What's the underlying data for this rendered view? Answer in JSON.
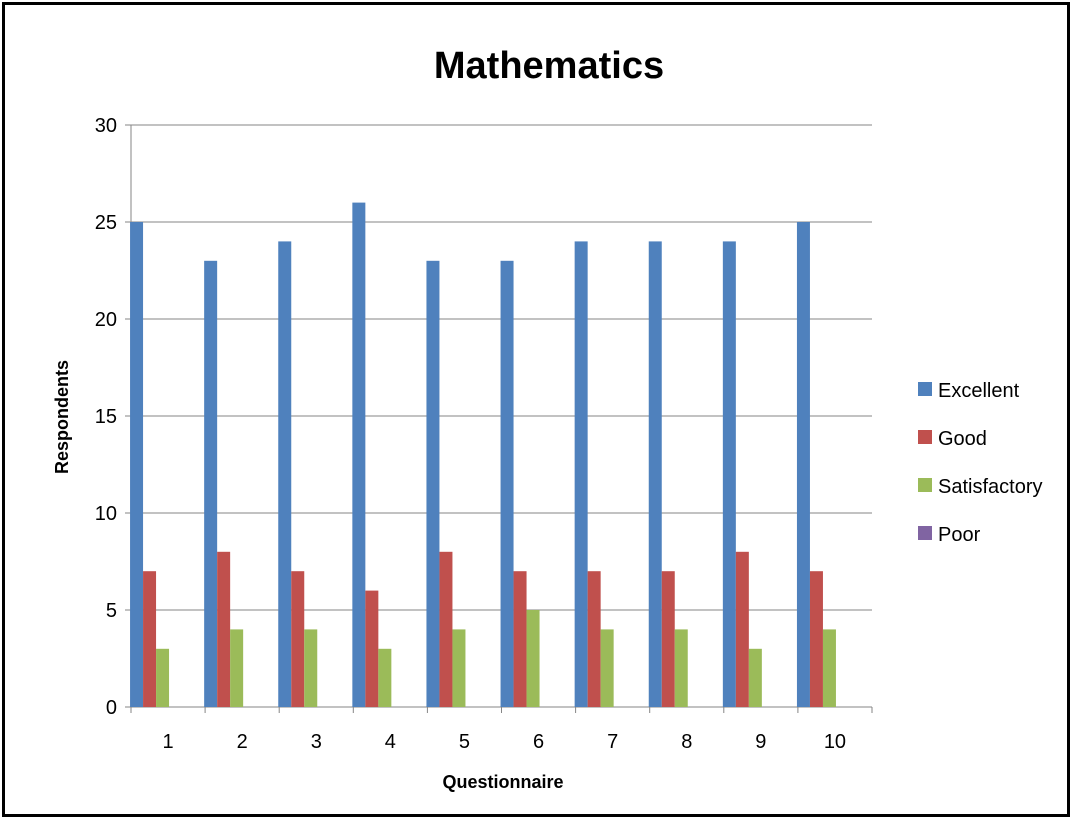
{
  "chart_data": {
    "type": "bar",
    "title": "Mathematics",
    "xlabel": "Questionnaire",
    "ylabel": "Respondents",
    "categories": [
      "1",
      "2",
      "3",
      "4",
      "5",
      "6",
      "7",
      "8",
      "9",
      "10"
    ],
    "ylim": [
      0,
      30
    ],
    "yticks": [
      0,
      5,
      10,
      15,
      20,
      25,
      30
    ],
    "grid": true,
    "legend_position": "right",
    "series": [
      {
        "name": "Excellent",
        "color": "#4F81BD",
        "values": [
          25,
          23,
          24,
          26,
          23,
          23,
          24,
          24,
          24,
          25
        ]
      },
      {
        "name": "Good",
        "color": "#C0504D",
        "values": [
          7,
          8,
          7,
          6,
          8,
          7,
          7,
          7,
          8,
          7
        ]
      },
      {
        "name": "Satisfactory",
        "color": "#9BBB59",
        "values": [
          3,
          4,
          4,
          3,
          4,
          5,
          4,
          4,
          3,
          4
        ]
      },
      {
        "name": "Poor",
        "color": "#8064A2",
        "values": [
          0,
          0,
          0,
          0,
          0,
          0,
          0,
          0,
          0,
          0
        ]
      }
    ]
  }
}
